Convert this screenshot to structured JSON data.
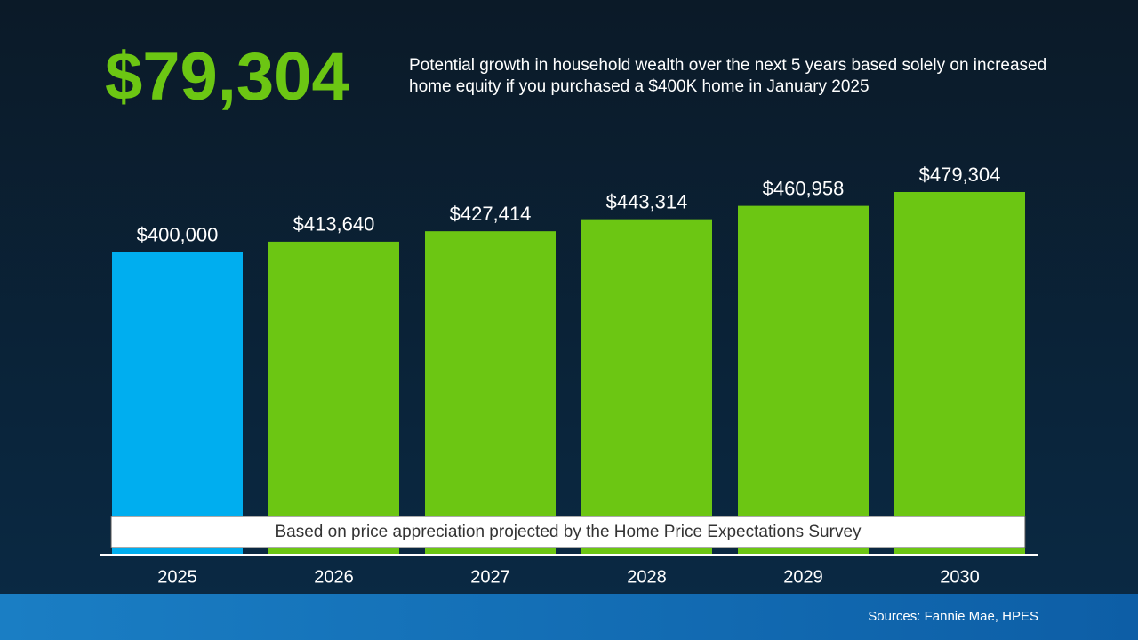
{
  "chart_data": {
    "type": "bar",
    "headline": "$79,304",
    "title": "Potential growth in household wealth over the next 5 years based solely on increased home equity if you purchased a $400K home in January 2025",
    "categories": [
      "2025",
      "2026",
      "2027",
      "2028",
      "2029",
      "2030"
    ],
    "values": [
      400000,
      413640,
      427414,
      443314,
      460958,
      479304
    ],
    "value_labels": [
      "$400,000",
      "$413,640",
      "$427,414",
      "$443,314",
      "$460,958",
      "$479,304"
    ],
    "colors": [
      "#00aeef",
      "#6cc613",
      "#6cc613",
      "#6cc613",
      "#6cc613",
      "#6cc613"
    ],
    "annotation": "Based on price appreciation projected by the Home Price Expectations Survey",
    "source": "Sources: Fannie Mae, HPES"
  }
}
